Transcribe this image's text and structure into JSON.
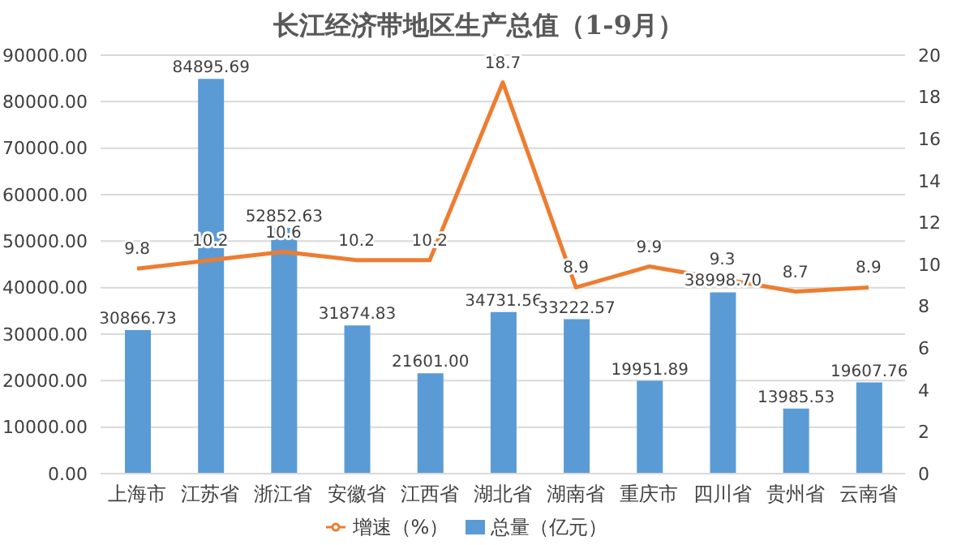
{
  "chart_data": {
    "type": "bar",
    "title": "长江经济带地区生产总值（1-9月）",
    "categories": [
      "上海市",
      "江苏省",
      "浙江省",
      "安徽省",
      "江西省",
      "湖北省",
      "湖南省",
      "重庆市",
      "四川省",
      "贵州省",
      "云南省"
    ],
    "series": [
      {
        "name": "总量（亿元）",
        "color": "#5b9bd5",
        "values": [
          30866.73,
          84895.69,
          52852.63,
          31874.83,
          21601.0,
          34731.56,
          33222.57,
          19951.89,
          38998.7,
          13985.53,
          19607.76
        ],
        "value_labels": [
          "30866.73",
          "84895.69",
          "52852.63",
          "31874.83",
          "21601.00",
          "34731.56",
          "33222.57",
          "19951.89",
          "38998.70",
          "13985.53",
          "19607.76"
        ]
      },
      {
        "name": "增速（%）",
        "type": "line",
        "axis": "y2",
        "color": "#ed7d31",
        "values": [
          9.8,
          10.2,
          10.6,
          10.2,
          10.2,
          18.7,
          8.9,
          9.9,
          9.3,
          8.7,
          8.9
        ],
        "value_labels": [
          "9.8",
          "10.2",
          "10.6",
          "10.2",
          "10.2",
          "18.7",
          "8.9",
          "9.9",
          "9.3",
          "8.7",
          "8.9"
        ]
      }
    ],
    "ylim": [
      0,
      90000
    ],
    "yticks": [
      {
        "value": 0,
        "label": "0.00"
      },
      {
        "value": 10000,
        "label": "10000.00"
      },
      {
        "value": 20000,
        "label": "20000.00"
      },
      {
        "value": 30000,
        "label": "30000.00"
      },
      {
        "value": 40000,
        "label": "40000.00"
      },
      {
        "value": 50000,
        "label": "50000.00"
      },
      {
        "value": 60000,
        "label": "60000.00"
      },
      {
        "value": 70000,
        "label": "70000.00"
      },
      {
        "value": 80000,
        "label": "80000.00"
      },
      {
        "value": 90000,
        "label": "90000.00"
      }
    ],
    "y2lim": [
      0,
      20
    ],
    "y2ticks": [
      0,
      2,
      4,
      6,
      8,
      10,
      12,
      14,
      16,
      18,
      20
    ],
    "grid": "y",
    "legend": "bottom",
    "marker": "none",
    "line_style": "solid"
  }
}
